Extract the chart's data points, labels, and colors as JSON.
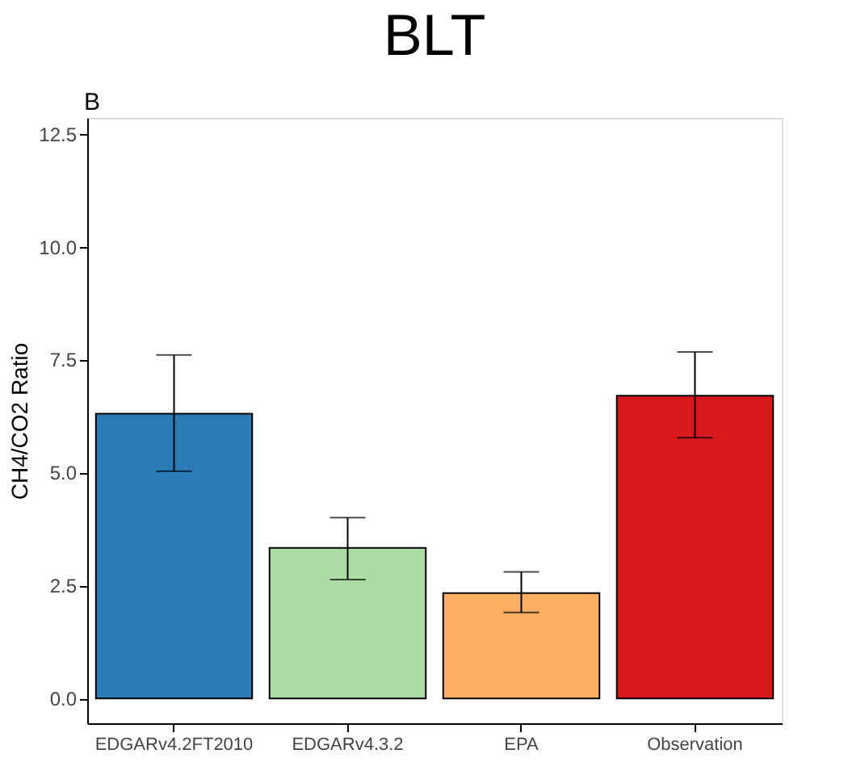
{
  "chart_data": {
    "type": "bar",
    "title": "BLT",
    "ylabel": "CH4/CO2 Ratio",
    "categories": [
      "EDGARv4.2FT2010",
      "EDGARv4.3.2",
      "EPA",
      "Observation"
    ],
    "values": [
      6.3,
      3.33,
      2.33,
      6.7
    ],
    "colors": [
      "#2c7bb6",
      "#abdda4",
      "#fdae61",
      "#d7191c"
    ],
    "errors": [
      [
        5.03,
        7.6
      ],
      [
        2.63,
        4.0
      ],
      [
        1.9,
        2.8
      ],
      [
        5.77,
        7.67
      ]
    ],
    "ylim": [
      -0.55,
      12.85
    ],
    "yticks": [
      {
        "value": 0,
        "label": "0.0"
      },
      {
        "value": 2.5,
        "label": "2.5"
      },
      {
        "value": 5,
        "label": "5.0"
      },
      {
        "value": 7.5,
        "label": "7.5"
      },
      {
        "value": 10,
        "label": "10.0"
      },
      {
        "value": 12.5,
        "label": "12.5"
      }
    ],
    "grid": false,
    "annotations": [
      "B"
    ]
  }
}
